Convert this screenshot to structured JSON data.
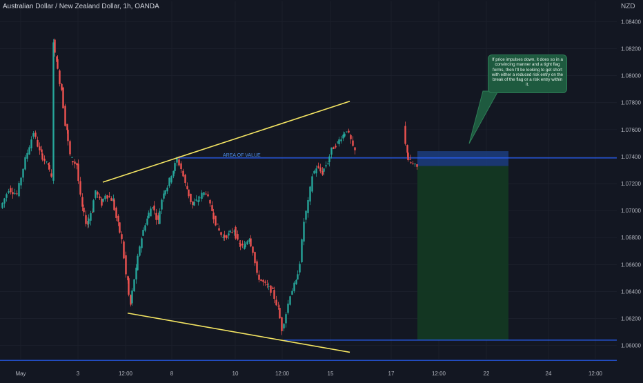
{
  "header": {
    "symbol_title": "Australian Dollar / New Zealand Dollar, 1h, OANDA",
    "currency": "NZD"
  },
  "annotations": {
    "area_of_value": "AREA OF VALUE",
    "note": "If price impulses down, it does so in a convincing manner and a tight flag forms, then I'll be looking to get short with either a reduced risk entry on the break of the flag or a risk entry within it."
  },
  "colors": {
    "background": "#131722",
    "bull": "#26a69a",
    "bear": "#ef5350",
    "trendline": "#f5e663",
    "level": "#2962ff",
    "risk_box": "#1c3b7a",
    "reward_box": "#133823"
  },
  "chart_data": {
    "type": "candlestick",
    "symbol": "AUDNZD",
    "interval": "1h",
    "y_axis": {
      "ticks": [
        "1.08400",
        "1.08200",
        "1.08000",
        "1.07800",
        "1.07600",
        "1.07400",
        "1.07200",
        "1.07000",
        "1.06800",
        "1.06600",
        "1.06400",
        "1.06200",
        "1.06000"
      ],
      "ylim": [
        1.0585,
        1.0855
      ]
    },
    "x_axis": {
      "ticks": [
        "May",
        "3",
        "12:00",
        "8",
        "10",
        "12:00",
        "15",
        "17",
        "12:00",
        "22",
        "24",
        "12:00"
      ]
    },
    "levels": [
      {
        "name": "area_of_value",
        "price": 1.0739
      },
      {
        "name": "support",
        "price": 1.0604
      },
      {
        "name": "lower_level",
        "price": 1.0589
      }
    ],
    "trendlines": [
      {
        "from": {
          "bar": 147,
          "price": 1.0721
        },
        "to": {
          "bar": 505,
          "price": 1.0781
        }
      },
      {
        "from": {
          "bar": 183,
          "price": 1.0624
        },
        "to": {
          "bar": 505,
          "price": 1.0595
        }
      }
    ],
    "position": {
      "entry": 1.0733,
      "stop": 1.0744,
      "target": 1.0604
    },
    "price_path": [
      [
        0,
        1.0702
      ],
      [
        12,
        1.0716
      ],
      [
        24,
        1.0712
      ],
      [
        36,
        1.0738
      ],
      [
        48,
        1.0758
      ],
      [
        58,
        1.0742
      ],
      [
        68,
        1.0734
      ],
      [
        74,
        1.0724
      ],
      [
        76,
        1.0826
      ],
      [
        80,
        1.0812
      ],
      [
        88,
        1.079
      ],
      [
        95,
        1.076
      ],
      [
        102,
        1.0738
      ],
      [
        110,
        1.0734
      ],
      [
        118,
        1.0702
      ],
      [
        125,
        1.069
      ],
      [
        132,
        1.07
      ],
      [
        138,
        1.0715
      ],
      [
        146,
        1.0705
      ],
      [
        152,
        1.0712
      ],
      [
        162,
        1.0708
      ],
      [
        170,
        1.069
      ],
      [
        176,
        1.0678
      ],
      [
        183,
        1.0648
      ],
      [
        188,
        1.063
      ],
      [
        196,
        1.0656
      ],
      [
        204,
        1.068
      ],
      [
        212,
        1.0694
      ],
      [
        220,
        1.0704
      ],
      [
        228,
        1.0692
      ],
      [
        236,
        1.0714
      ],
      [
        242,
        1.0718
      ],
      [
        250,
        1.073
      ],
      [
        256,
        1.0738
      ],
      [
        262,
        1.0731
      ],
      [
        270,
        1.0716
      ],
      [
        278,
        1.0704
      ],
      [
        286,
        1.0708
      ],
      [
        292,
        1.0712
      ],
      [
        298,
        1.0714
      ],
      [
        306,
        1.07
      ],
      [
        314,
        1.0688
      ],
      [
        322,
        1.068
      ],
      [
        330,
        1.0682
      ],
      [
        338,
        1.0686
      ],
      [
        345,
        1.0675
      ],
      [
        352,
        1.0673
      ],
      [
        360,
        1.068
      ],
      [
        366,
        1.067
      ],
      [
        372,
        1.0652
      ],
      [
        378,
        1.0648
      ],
      [
        386,
        1.0644
      ],
      [
        394,
        1.064
      ],
      [
        402,
        1.0628
      ],
      [
        408,
        1.0612
      ],
      [
        414,
        1.0624
      ],
      [
        420,
        1.0638
      ],
      [
        428,
        1.0647
      ],
      [
        434,
        1.0662
      ],
      [
        440,
        1.0692
      ],
      [
        446,
        1.0706
      ],
      [
        452,
        1.0726
      ],
      [
        458,
        1.0732
      ],
      [
        466,
        1.0728
      ],
      [
        474,
        1.0736
      ],
      [
        480,
        1.0745
      ],
      [
        488,
        1.075
      ],
      [
        496,
        1.0756
      ],
      [
        502,
        1.076
      ],
      [
        508,
        1.0752
      ],
      [
        512,
        1.0744
      ],
      null,
      [
        584,
        1.0762
      ],
      [
        588,
        1.0744
      ],
      [
        592,
        1.0736
      ],
      [
        598,
        1.0734
      ],
      [
        604,
        1.0732
      ]
    ]
  }
}
